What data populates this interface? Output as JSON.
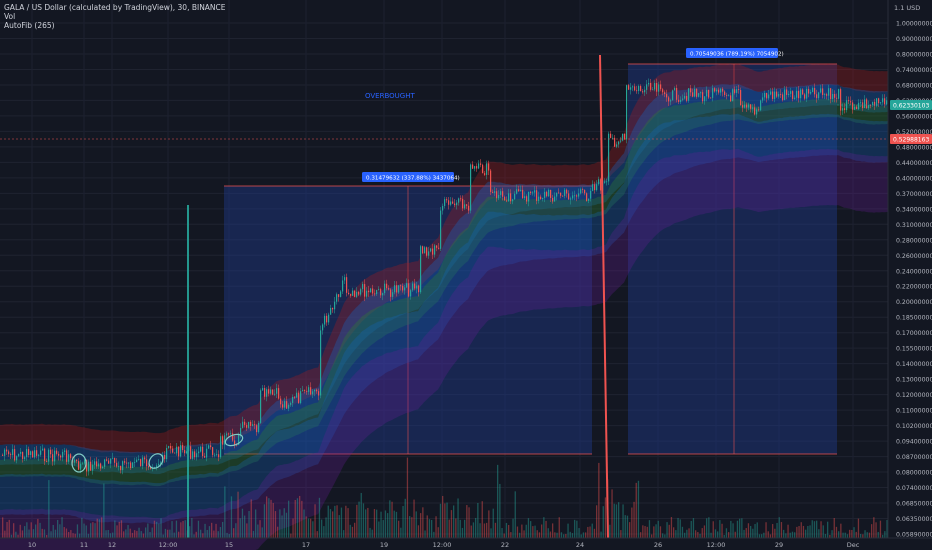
{
  "header": {
    "title": "GALA / US Dollar (calculated by TradingView), 30, BINANCE",
    "vol_label": "Vol",
    "indicator_label": "AutoFib (265)"
  },
  "annotations": {
    "overbought": "OVERBOUGHT",
    "measure_left": "0.31479632 (337.88%) 3437064)",
    "measure_right": "0.70549036 (789.19%) 7054902)"
  },
  "colors": {
    "background": "#131722",
    "up_candle": "#26a69a",
    "down_candle": "#ef5350",
    "box_fill": "#1e3a8a",
    "green_line": "#26a69a",
    "red_line": "#ef5350",
    "price_tag_green": "#26a69a",
    "price_tag_red": "#ef5350"
  },
  "chart_data": {
    "type": "candlestick",
    "y_scale": "log",
    "currency_label": "1.1 USD",
    "y_ticks": [
      "1.00000000",
      "0.90000000",
      "0.80000000",
      "0.74000000",
      "0.68000000",
      "0.62000000",
      "0.56000000",
      "0.52000000",
      "0.48000000",
      "0.44000000",
      "0.40000000",
      "0.37000000",
      "0.34000000",
      "0.31000000",
      "0.28000000",
      "0.26000000",
      "0.24000000",
      "0.22000000",
      "0.20000000",
      "0.18500000",
      "0.17000000",
      "0.15500000",
      "0.14000000",
      "0.13000000",
      "0.12000000",
      "0.11000000",
      "0.10200000",
      "0.09400000",
      "0.08700000",
      "0.08000000",
      "0.07400000",
      "0.06850000",
      "0.06350000",
      "0.05890000"
    ],
    "x_ticks": [
      "10",
      "11",
      "12",
      "12:00",
      "15",
      "17",
      "19",
      "12:00",
      "22",
      "24",
      "26",
      "12:00",
      "29",
      "Dec"
    ],
    "price_tags": [
      {
        "label": "0.62330103",
        "color": "#26a69a"
      },
      {
        "label": "0.52988163",
        "color": "#ef5350"
      }
    ]
  }
}
